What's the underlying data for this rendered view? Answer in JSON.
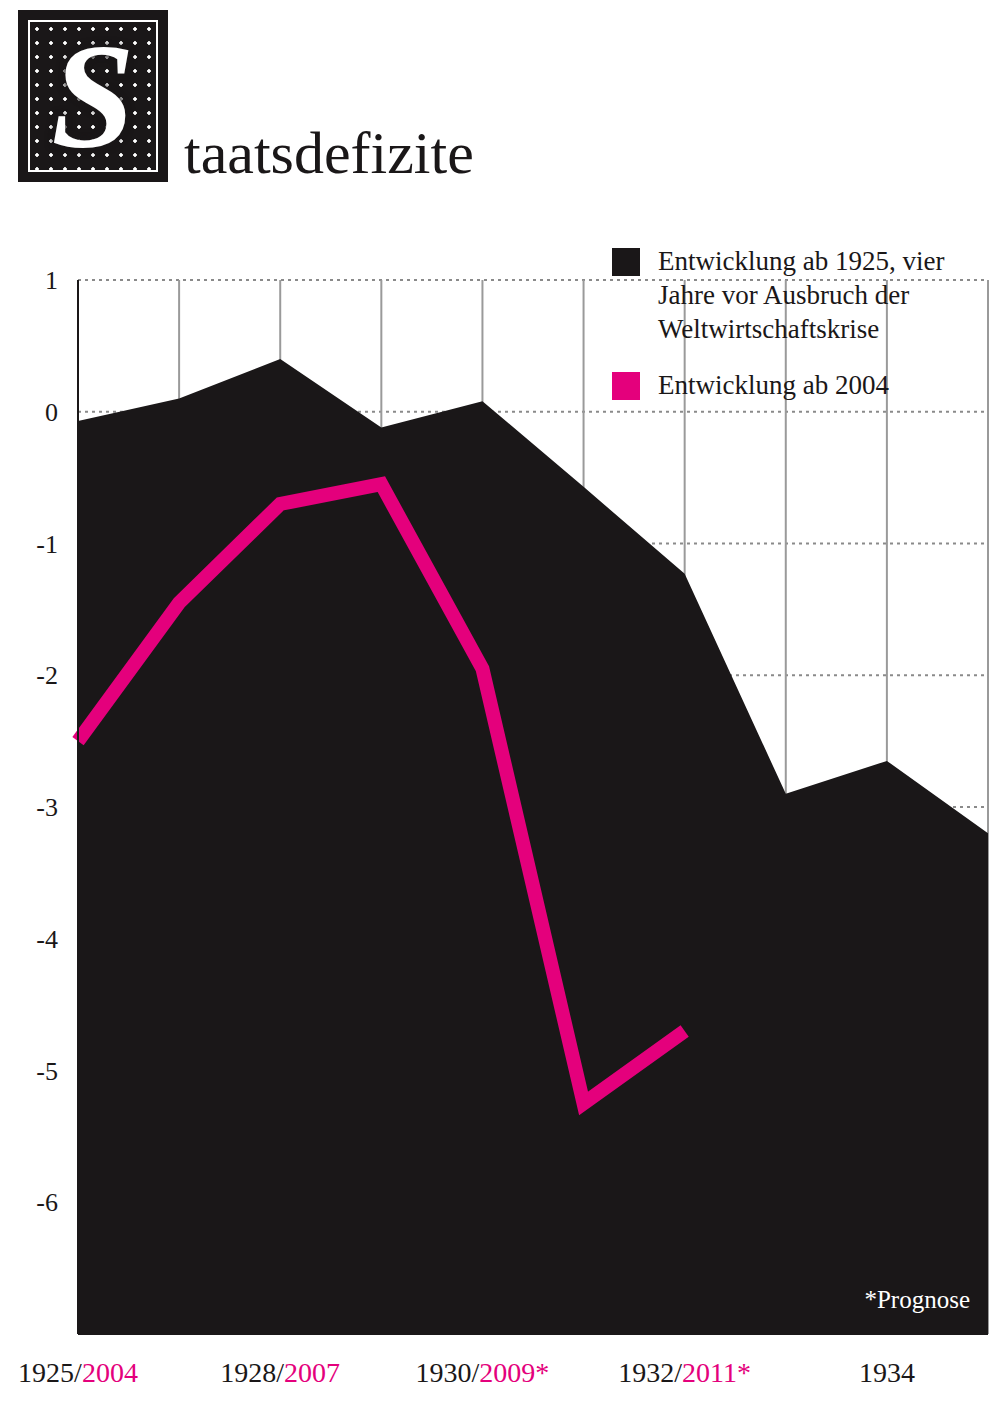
{
  "chart_data": {
    "type": "area",
    "title": "Staatsdefizite",
    "categories": [
      "1925/2004",
      null,
      "1928/2007",
      null,
      "1930/2009*",
      null,
      "1932/2011*",
      null,
      "1934",
      null
    ],
    "series": [
      {
        "name": "Entwicklung ab 1925, vier Jahre vor Ausbruch der Weltwirtschaftskrise",
        "color": "#1a1718",
        "type": "area",
        "values": [
          -0.07,
          0.1,
          0.4,
          -0.12,
          0.08,
          -0.57,
          -1.23,
          -2.9,
          -2.65,
          -3.2
        ]
      },
      {
        "name": "Entwicklung ab 2004",
        "color": "#e4007c",
        "type": "line",
        "values": [
          -2.5,
          -1.45,
          -0.7,
          -0.55,
          -1.95,
          -5.25,
          -4.7,
          null,
          null,
          null
        ]
      }
    ],
    "ylim": [
      -7,
      1
    ],
    "yticks": [
      -6,
      -5,
      -4,
      -3,
      -2,
      -1,
      0,
      1
    ],
    "grid": true,
    "legend": "top-right",
    "annotations": [
      "*Prognose"
    ]
  }
}
